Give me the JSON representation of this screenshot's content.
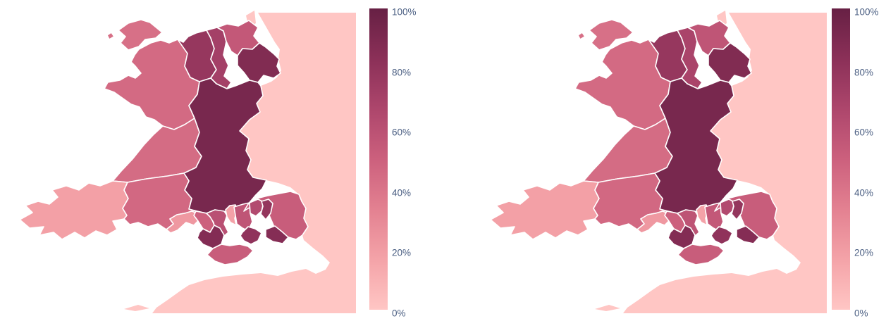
{
  "canvas": {
    "background": "#ffffff",
    "sea_color": "#ffffff"
  },
  "colorscale": {
    "name": "Burg",
    "stops": [
      [
        0.0,
        "#ffc6c4"
      ],
      [
        0.1667,
        "#f4a3a8"
      ],
      [
        0.3333,
        "#e38191"
      ],
      [
        0.5,
        "#cc607d"
      ],
      [
        0.6667,
        "#ad466c"
      ],
      [
        0.8333,
        "#8b3058"
      ],
      [
        1.0,
        "#672044"
      ]
    ]
  },
  "colorbar": {
    "ticks": [
      "0%",
      "20%",
      "40%",
      "60%",
      "80%",
      "100%"
    ],
    "tick_color": "#4a5e82",
    "range": [
      0,
      100
    ]
  },
  "base_land": {
    "label": "surrounding-land",
    "value": 0
  },
  "chart_data": [
    {
      "type": "choropleth",
      "title": "",
      "geography": "Wales local authorities",
      "value_format": "percent",
      "range": [
        0,
        100
      ],
      "legend_position": "right",
      "regions": {
        "isle-of-anglesey": 42,
        "gwynedd": 45,
        "conwy": 78,
        "denbighshire": 71,
        "flintshire": 55,
        "wrexham": 88,
        "ceredigion": 44,
        "powys": 92,
        "pembrokeshire": 18,
        "carmarthenshire": 46,
        "swansea": 22,
        "neath-port-talbot": 50,
        "bridgend": 87,
        "vale-of-glamorgan": 52,
        "rhondda-cynon-taf": 60,
        "merthyr-tydfil": 17,
        "caerphilly": 57,
        "blaenau-gwent": 64,
        "torfaen": 79,
        "monmouthshire": 52,
        "newport": 86,
        "cardiff": 81
      }
    },
    {
      "type": "choropleth",
      "title": "",
      "geography": "Wales local authorities",
      "value_format": "percent",
      "range": [
        0,
        100
      ],
      "legend_position": "right",
      "regions": {
        "isle-of-anglesey": 42,
        "gwynedd": 45,
        "conwy": 78,
        "denbighshire": 68,
        "flintshire": 57,
        "wrexham": 88,
        "ceredigion": 44,
        "powys": 92,
        "pembrokeshire": 18,
        "carmarthenshire": 46,
        "swansea": 22,
        "neath-port-talbot": 50,
        "bridgend": 87,
        "vale-of-glamorgan": 52,
        "rhondda-cynon-taf": 58,
        "merthyr-tydfil": 17,
        "caerphilly": 55,
        "blaenau-gwent": 64,
        "torfaen": 79,
        "monmouthshire": 52,
        "newport": 86,
        "cardiff": 81
      }
    }
  ]
}
